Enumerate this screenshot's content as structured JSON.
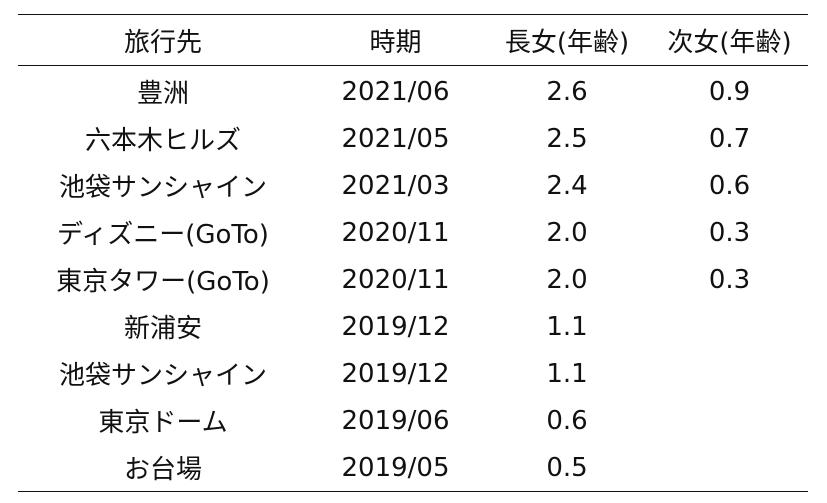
{
  "table": {
    "headers": [
      "旅行先",
      "時期",
      "長女(年齢)",
      "次女(年齢)"
    ],
    "rows": [
      [
        "豊洲",
        "2021/06",
        "2.6",
        "0.9"
      ],
      [
        "六本木ヒルズ",
        "2021/05",
        "2.5",
        "0.7"
      ],
      [
        "池袋サンシャイン",
        "2021/03",
        "2.4",
        "0.6"
      ],
      [
        "ディズニー(GoTo)",
        "2020/11",
        "2.0",
        "0.3"
      ],
      [
        "東京タワー(GoTo)",
        "2020/11",
        "2.0",
        "0.3"
      ],
      [
        "新浦安",
        "2019/12",
        "1.1",
        ""
      ],
      [
        "池袋サンシャイン",
        "2019/12",
        "1.1",
        ""
      ],
      [
        "東京ドーム",
        "2019/06",
        "0.6",
        ""
      ],
      [
        "お台場",
        "2019/05",
        "0.5",
        ""
      ]
    ]
  }
}
